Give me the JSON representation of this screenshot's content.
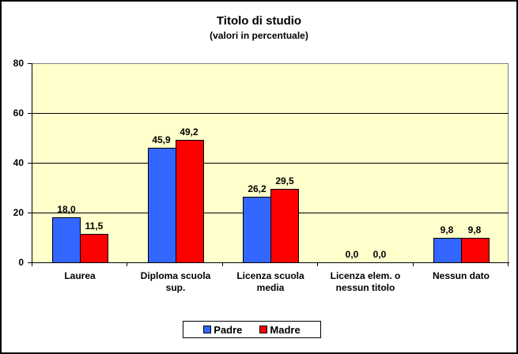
{
  "chart_data": {
    "type": "bar",
    "title": "Titolo di studio",
    "subtitle": "(valori in percentuale)",
    "xlabel": "",
    "ylabel": "",
    "ylim": [
      0,
      80
    ],
    "yticks": [
      "0",
      "20",
      "40",
      "60",
      "80"
    ],
    "grid": true,
    "legend_position": "bottom",
    "categories": [
      "Laurea",
      "Diploma scuola sup.",
      "Licenza scuola media",
      "Licenza elem. o nessun titolo",
      "Nessun dato"
    ],
    "category_lines": [
      [
        "Laurea"
      ],
      [
        "Diploma scuola",
        "sup."
      ],
      [
        "Licenza scuola",
        "media"
      ],
      [
        "Licenza elem. o",
        "nessun titolo"
      ],
      [
        "Nessun dato"
      ]
    ],
    "series": [
      {
        "name": "Padre",
        "color": "#3366ff",
        "values": [
          18.0,
          45.9,
          26.2,
          0.0,
          9.8
        ],
        "labels": [
          "18,0",
          "45,9",
          "26,2",
          "0,0",
          "9,8"
        ]
      },
      {
        "name": "Madre",
        "color": "#ff0000",
        "values": [
          11.5,
          49.2,
          29.5,
          0.0,
          9.8
        ],
        "labels": [
          "11,5",
          "49,2",
          "29,5",
          "0,0",
          "9,8"
        ]
      }
    ],
    "plot_background": "#ffffcc"
  }
}
